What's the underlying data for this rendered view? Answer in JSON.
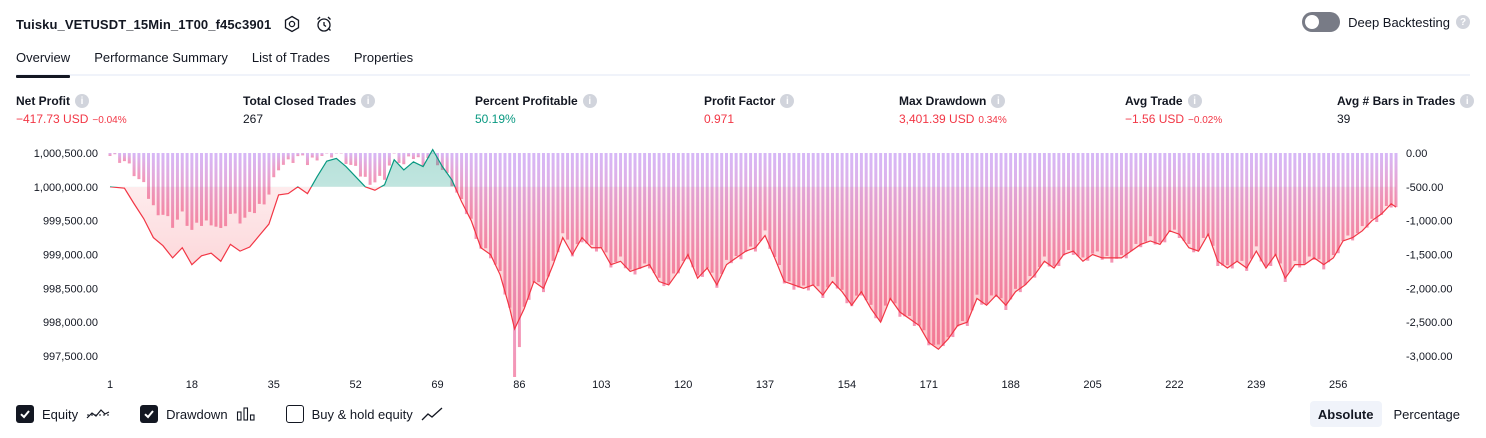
{
  "header": {
    "strategy_name": "Tuisku_VETUSDT_15Min_1T00_f45c3901",
    "settings_icon": "gear-icon",
    "alert_icon": "alarm-clock-icon"
  },
  "deep_backtesting": {
    "label": "Deep Backtesting",
    "enabled": false,
    "help": "?"
  },
  "tabs": [
    {
      "label": "Overview",
      "active": true
    },
    {
      "label": "Performance Summary",
      "active": false
    },
    {
      "label": "List of Trades",
      "active": false
    },
    {
      "label": "Properties",
      "active": false
    }
  ],
  "metrics": {
    "net_profit": {
      "label": "Net Profit",
      "value": "−417.73 USD",
      "pct": "−0.04%"
    },
    "total_closed_trades": {
      "label": "Total Closed Trades",
      "value": "267"
    },
    "percent_profitable": {
      "label": "Percent Profitable",
      "value": "50.19%"
    },
    "profit_factor": {
      "label": "Profit Factor",
      "value": "0.971"
    },
    "max_drawdown": {
      "label": "Max Drawdown",
      "value": "3,401.39 USD",
      "pct": "0.34%"
    },
    "avg_trade": {
      "label": "Avg Trade",
      "value": "−1.56 USD",
      "pct": "−0.02%"
    },
    "avg_bars": {
      "label": "Avg # Bars in Trades",
      "value": "39"
    },
    "info_glyph": "i"
  },
  "chart_data": {
    "type": "line",
    "equity_baseline": 1000000,
    "x_ticks": [
      "1",
      "18",
      "35",
      "52",
      "69",
      "86",
      "103",
      "120",
      "137",
      "154",
      "171",
      "188",
      "205",
      "222",
      "239",
      "256"
    ],
    "y_left_ticks": [
      "1,000,500.00",
      "1,000,000.00",
      "999,500.00",
      "999,000.00",
      "998,500.00",
      "998,000.00",
      "997,500.00"
    ],
    "y_right_ticks": [
      "0.00",
      "-500.00",
      "-1,000.00",
      "-1,500.00",
      "-2,000.00",
      "-2,500.00",
      "-3,000.00"
    ],
    "ylim_left": [
      997500,
      1000500
    ],
    "ylim_right": [
      -3000,
      0
    ],
    "x_range": [
      1,
      268
    ],
    "equity": {
      "x": [
        1,
        4,
        6,
        8,
        10,
        12,
        14,
        16,
        18,
        20,
        22,
        24,
        26,
        28,
        30,
        32,
        34,
        36,
        38,
        40,
        42,
        44,
        46,
        48,
        50,
        52,
        54,
        56,
        58,
        60,
        62,
        64,
        66,
        68,
        70,
        72,
        74,
        76,
        78,
        80,
        82,
        84,
        85,
        87,
        89,
        91,
        93,
        95,
        97,
        99,
        101,
        103,
        105,
        107,
        109,
        111,
        113,
        115,
        117,
        119,
        121,
        123,
        125,
        127,
        129,
        131,
        133,
        135,
        137,
        139,
        141,
        143,
        145,
        147,
        149,
        151,
        153,
        155,
        157,
        159,
        161,
        163,
        165,
        167,
        169,
        171,
        173,
        175,
        177,
        179,
        181,
        183,
        185,
        187,
        189,
        191,
        193,
        195,
        197,
        199,
        201,
        203,
        205,
        207,
        209,
        211,
        213,
        215,
        217,
        219,
        221,
        223,
        225,
        227,
        229,
        231,
        233,
        235,
        237,
        239,
        241,
        243,
        245,
        247,
        249,
        251,
        253,
        255,
        257,
        259,
        261,
        263,
        265,
        267,
        268
      ],
      "y": [
        1000000,
        999980,
        999750,
        999530,
        999250,
        999130,
        998950,
        999100,
        998850,
        998980,
        999020,
        998900,
        999150,
        999050,
        999110,
        999280,
        999450,
        999880,
        999900,
        1000000,
        999900,
        1000150,
        1000380,
        1000420,
        1000300,
        1000150,
        1000000,
        999950,
        1000030,
        1000400,
        1000250,
        1000370,
        1000300,
        1000550,
        1000300,
        1000100,
        999780,
        999500,
        999100,
        999000,
        998700,
        998200,
        997900,
        998200,
        998600,
        998500,
        998850,
        999250,
        999000,
        999250,
        999100,
        999100,
        998850,
        998900,
        998750,
        998800,
        998850,
        998600,
        998550,
        998750,
        999000,
        998650,
        998800,
        998550,
        998850,
        998950,
        999050,
        999100,
        999280,
        998950,
        998600,
        998550,
        998500,
        998550,
        998400,
        998600,
        998450,
        998250,
        998450,
        998200,
        998000,
        998350,
        998150,
        998050,
        997950,
        997700,
        997600,
        997750,
        997950,
        998000,
        998350,
        998250,
        998400,
        998250,
        998450,
        998550,
        998700,
        998900,
        998800,
        999000,
        999050,
        998900,
        999000,
        998950,
        998950,
        998950,
        999050,
        999150,
        999200,
        999150,
        999350,
        999300,
        999100,
        999050,
        999300,
        998900,
        998800,
        998900,
        998800,
        999050,
        998800,
        999000,
        998650,
        998850,
        998850,
        998950,
        998850,
        998950,
        999200,
        999250,
        999350,
        999500,
        999600,
        999750,
        999700
      ]
    },
    "drawdown": {
      "x": [
        1,
        4,
        6,
        8,
        10,
        12,
        14,
        16,
        18,
        20,
        22,
        24,
        26,
        28,
        30,
        32,
        34,
        36,
        38,
        40,
        42,
        44,
        46,
        48,
        50,
        52,
        54,
        56,
        58,
        60,
        62,
        64,
        66,
        68,
        70,
        72,
        74,
        76,
        78,
        80,
        82,
        84,
        85,
        87,
        89,
        91,
        93,
        95,
        97,
        99,
        101,
        103,
        105,
        107,
        109,
        111,
        113,
        115,
        117,
        119,
        121,
        123,
        125,
        127,
        129,
        131,
        133,
        135,
        137,
        139,
        141,
        143,
        145,
        147,
        149,
        151,
        153,
        155,
        157,
        159,
        161,
        163,
        165,
        167,
        169,
        171,
        173,
        175,
        177,
        179,
        181,
        183,
        185,
        187,
        189,
        191,
        193,
        195,
        197,
        199,
        201,
        203,
        205,
        207,
        209,
        211,
        213,
        215,
        217,
        219,
        221,
        223,
        225,
        227,
        229,
        231,
        233,
        235,
        237,
        239,
        241,
        243,
        245,
        247,
        249,
        251,
        253,
        255,
        257,
        259,
        261,
        263,
        265,
        267,
        268
      ],
      "y": [
        -30,
        -120,
        -300,
        -500,
        -800,
        -900,
        -1050,
        -920,
        -1150,
        -1050,
        -1000,
        -1150,
        -900,
        -1000,
        -940,
        -780,
        -600,
        -200,
        -150,
        -60,
        -150,
        -40,
        -20,
        0,
        -120,
        -260,
        -380,
        -420,
        -340,
        -30,
        -180,
        -60,
        -120,
        0,
        -250,
        -450,
        -750,
        -1000,
        -1400,
        -1500,
        -1800,
        -2300,
        -3380,
        -2300,
        -1900,
        -2000,
        -1650,
        -1200,
        -1500,
        -1250,
        -1400,
        -1400,
        -1650,
        -1600,
        -1750,
        -1700,
        -1650,
        -1900,
        -1950,
        -1750,
        -1500,
        -1850,
        -1700,
        -1950,
        -1650,
        -1550,
        -1450,
        -1400,
        -1200,
        -1550,
        -1900,
        -1950,
        -2000,
        -1950,
        -2100,
        -1900,
        -2050,
        -2250,
        -2050,
        -2300,
        -2500,
        -2150,
        -2350,
        -2450,
        -2550,
        -2800,
        -2900,
        -2750,
        -2550,
        -2500,
        -2150,
        -2250,
        -2100,
        -2250,
        -2050,
        -1950,
        -1800,
        -1600,
        -1700,
        -1500,
        -1450,
        -1600,
        -1500,
        -1550,
        -1550,
        -1550,
        -1450,
        -1350,
        -1300,
        -1350,
        -1150,
        -1200,
        -1400,
        -1450,
        -1200,
        -1600,
        -1700,
        -1600,
        -1700,
        -1450,
        -1700,
        -1500,
        -1850,
        -1650,
        -1650,
        -1550,
        -1650,
        -1550,
        -1300,
        -1250,
        -1150,
        -1000,
        -900,
        -750,
        -800
      ]
    }
  },
  "footer": {
    "equity": {
      "label": "Equity",
      "checked": true,
      "icon": "equity-line-icon"
    },
    "drawdown": {
      "label": "Drawdown",
      "checked": true,
      "icon": "drawdown-bars-icon"
    },
    "buy_hold": {
      "label": "Buy & hold equity",
      "checked": false,
      "icon": "buy-hold-line-icon"
    }
  },
  "mode": {
    "absolute": "Absolute",
    "percentage": "Percentage",
    "active": "absolute"
  },
  "colors": {
    "equity_up": "#089981",
    "equity_down": "#f23645",
    "drawdown_bar": "#c98bf0",
    "text": "#131722",
    "negative": "#f23645",
    "positive": "#089981"
  }
}
